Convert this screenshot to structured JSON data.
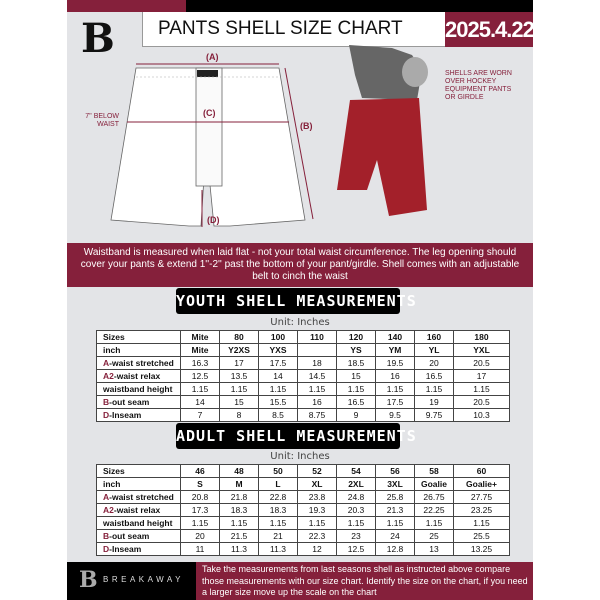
{
  "header": {
    "logo": "B",
    "title": "PANTS SHELL SIZE CHART",
    "date": "2025.4.22"
  },
  "diagram": {
    "a": "(A)",
    "b": "(B)",
    "c": "(C)",
    "d": "(D)",
    "below_waist": "7'' BELOW WAIST",
    "note": "SHELLS ARE WORN OVER HOCKEY EQUIPMENT PANTS OR GIRDLE"
  },
  "colors": {
    "brand": "#85203b",
    "shell_red": "#a3202a"
  },
  "info_band": "Waistband is measured when laid flat - not your total waist circumference. The leg opening should cover your pants & extend 1''-2'' past the bottom of your pant/girdle. Shell comes with an adjustable belt to cinch the waist",
  "youth": {
    "title": "YOUTH SHELL MEASUREMENTS",
    "unit": "Unit: Inches",
    "rows": [
      {
        "k": "",
        "l": "Sizes",
        "v": [
          "Mite",
          "80",
          "100",
          "110",
          "120",
          "140",
          "160",
          "180"
        ]
      },
      {
        "k": "",
        "l": "inch",
        "v": [
          "Mite",
          "Y2XS",
          "YXS",
          "",
          "YS",
          "YM",
          "YL",
          "YXL"
        ]
      },
      {
        "k": "A",
        "l": "-waist stretched",
        "v": [
          "16.3",
          "17",
          "17.5",
          "18",
          "18.5",
          "19.5",
          "20",
          "20.5"
        ]
      },
      {
        "k": "A2",
        "l": "-waist relax",
        "v": [
          "12.5",
          "13.5",
          "14",
          "14.5",
          "15",
          "16",
          "16.5",
          "17"
        ]
      },
      {
        "k": "",
        "l": "waistband height",
        "v": [
          "1.15",
          "1.15",
          "1.15",
          "1.15",
          "1.15",
          "1.15",
          "1.15",
          "1.15"
        ]
      },
      {
        "k": "B",
        "l": "-out seam",
        "v": [
          "14",
          "15",
          "15.5",
          "16",
          "16.5",
          "17.5",
          "19",
          "20.5"
        ]
      },
      {
        "k": "D",
        "l": "-Inseam",
        "v": [
          "7",
          "8",
          "8.5",
          "8.75",
          "9",
          "9.5",
          "9.75",
          "10.3"
        ]
      }
    ]
  },
  "adult": {
    "title": "ADULT SHELL MEASUREMENTS",
    "unit": "Unit: Inches",
    "rows": [
      {
        "k": "",
        "l": "Sizes",
        "v": [
          "46",
          "48",
          "50",
          "52",
          "54",
          "56",
          "58",
          "60"
        ]
      },
      {
        "k": "",
        "l": "inch",
        "v": [
          "S",
          "M",
          "L",
          "XL",
          "2XL",
          "3XL",
          "Goalie",
          "Goalie+"
        ]
      },
      {
        "k": "A",
        "l": "-waist stretched",
        "v": [
          "20.8",
          "21.8",
          "22.8",
          "23.8",
          "24.8",
          "25.8",
          "26.75",
          "27.75"
        ]
      },
      {
        "k": "A2",
        "l": "-waist relax",
        "v": [
          "17.3",
          "18.3",
          "18.3",
          "19.3",
          "20.3",
          "21.3",
          "22.25",
          "23.25"
        ]
      },
      {
        "k": "",
        "l": "waistband height",
        "v": [
          "1.15",
          "1.15",
          "1.15",
          "1.15",
          "1.15",
          "1.15",
          "1.15",
          "1.15"
        ]
      },
      {
        "k": "B",
        "l": "-out seam",
        "v": [
          "20",
          "21.5",
          "21",
          "22.3",
          "23",
          "24",
          "25",
          "25.5"
        ]
      },
      {
        "k": "D",
        "l": "-Inseam",
        "v": [
          "11",
          "11.3",
          "11.3",
          "12",
          "12.5",
          "12.8",
          "13",
          "13.25"
        ]
      }
    ]
  },
  "footer": {
    "logo": "B",
    "brand": "BREAKAWAY",
    "text": "Take the measurements from last seasons shell as instructed above compare those measurements  with our size chart. Identify the size on the chart, if you need a larger size move up the scale on the chart"
  }
}
